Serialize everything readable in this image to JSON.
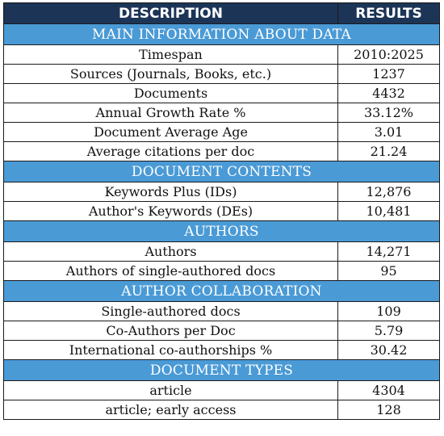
{
  "header": {
    "description": "DESCRIPTION",
    "results": "RESULTS"
  },
  "sections": [
    {
      "title": "MAIN INFORMATION ABOUT DATA",
      "rows": [
        {
          "description": "Timespan",
          "result": "2010:2025"
        },
        {
          "description": "Sources (Journals, Books, etc.)",
          "result": "1237"
        },
        {
          "description": "Documents",
          "result": "4432"
        },
        {
          "description": "Annual Growth Rate %",
          "result": "33.12%"
        },
        {
          "description": "Document Average Age",
          "result": "3.01"
        },
        {
          "description": "Average citations per doc",
          "result": "21.24"
        }
      ]
    },
    {
      "title": "DOCUMENT CONTENTS",
      "rows": [
        {
          "description": "Keywords Plus (IDs)",
          "result": "12,876"
        },
        {
          "description": "Author's Keywords (DEs)",
          "result": "10,481"
        }
      ]
    },
    {
      "title": "AUTHORS",
      "rows": [
        {
          "description": "Authors",
          "result": "14,271"
        },
        {
          "description": "Authors of single-authored docs",
          "result": "95"
        }
      ]
    },
    {
      "title": "AUTHOR COLLABORATION",
      "rows": [
        {
          "description": "Single-authored docs",
          "result": "109"
        },
        {
          "description": "Co-Authors per Doc",
          "result": "5.79"
        },
        {
          "description": "International co-authorships %",
          "result": "30.42"
        }
      ]
    },
    {
      "title": "DOCUMENT TYPES",
      "rows": [
        {
          "description": "article",
          "result": "4304"
        },
        {
          "description": "article; early access",
          "result": "128"
        }
      ]
    }
  ]
}
